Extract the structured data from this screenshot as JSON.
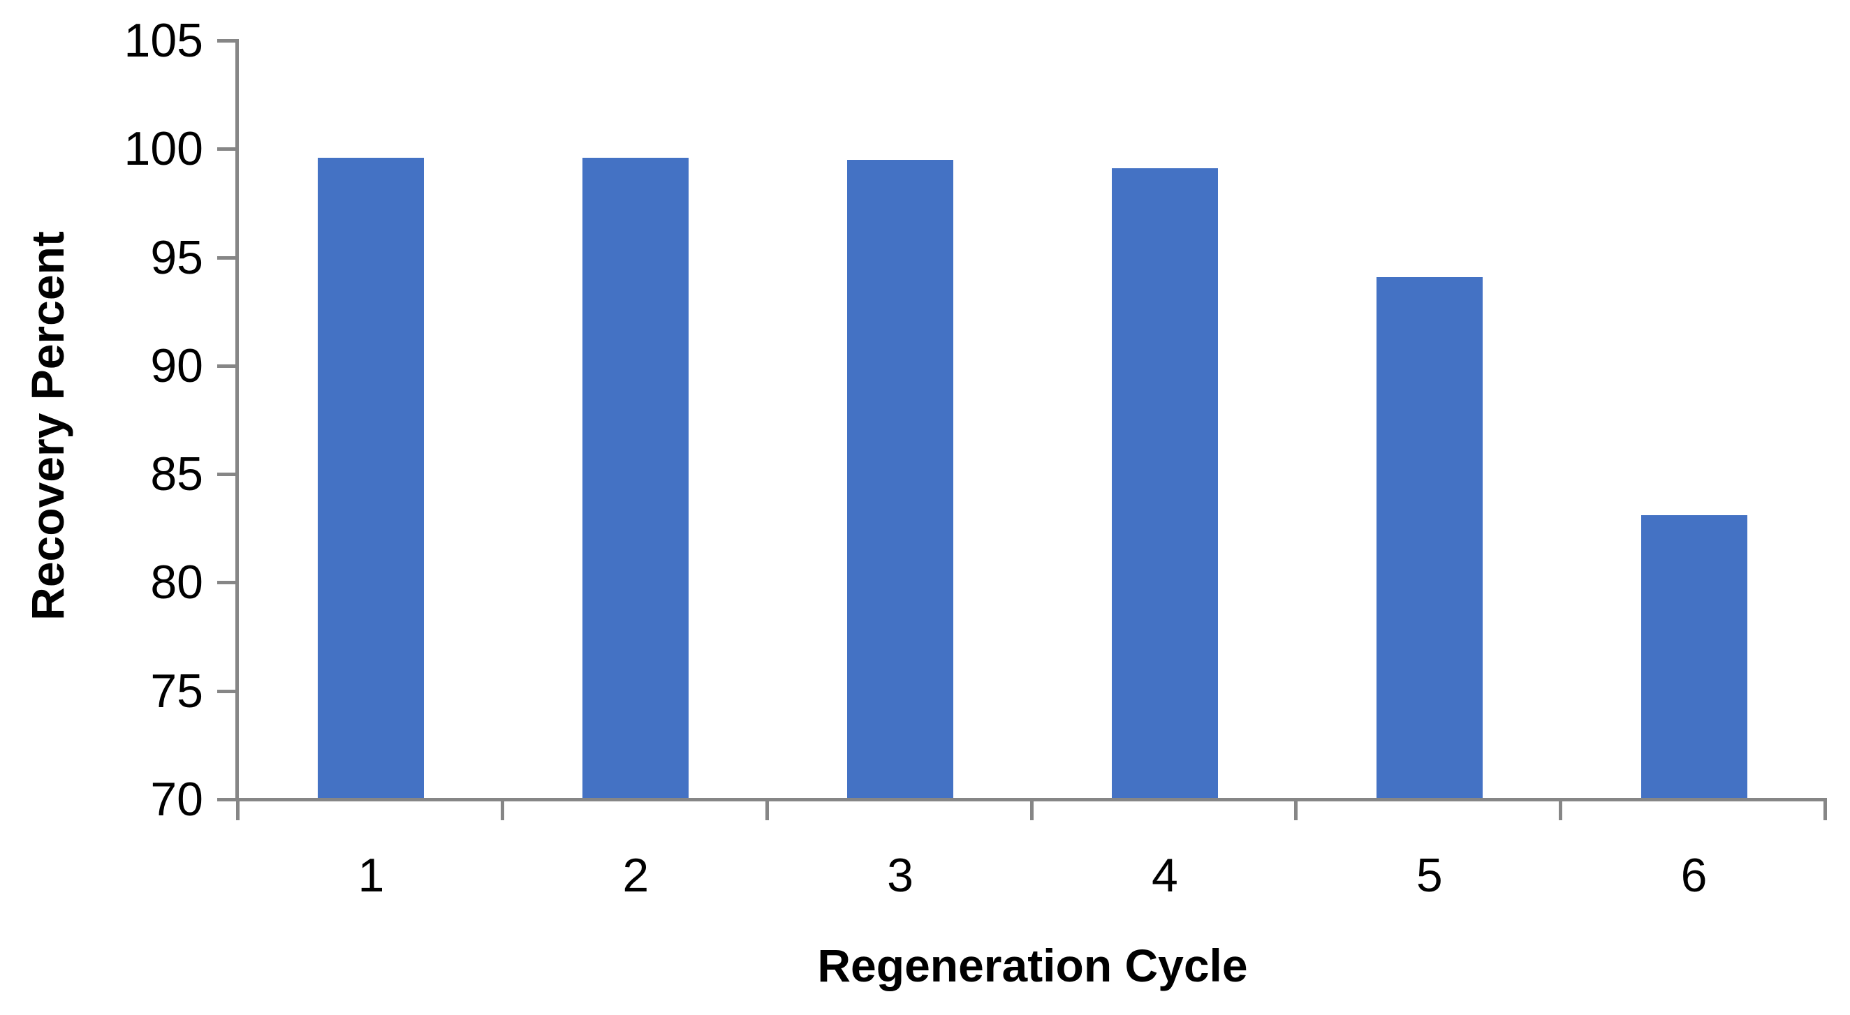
{
  "chart_data": {
    "type": "bar",
    "categories": [
      "1",
      "2",
      "3",
      "4",
      "5",
      "6"
    ],
    "values": [
      99.6,
      99.6,
      99.5,
      99.1,
      94.1,
      83.1
    ],
    "xlabel": "Regeneration Cycle",
    "ylabel": "Recovery Percent",
    "ylim": [
      70,
      105
    ],
    "yticks": [
      70,
      75,
      80,
      85,
      90,
      95,
      100,
      105
    ],
    "grid": false,
    "legend_position": "none",
    "bar_color": "#4472C4",
    "axis_color": "#868686",
    "text_color": "#000000"
  }
}
